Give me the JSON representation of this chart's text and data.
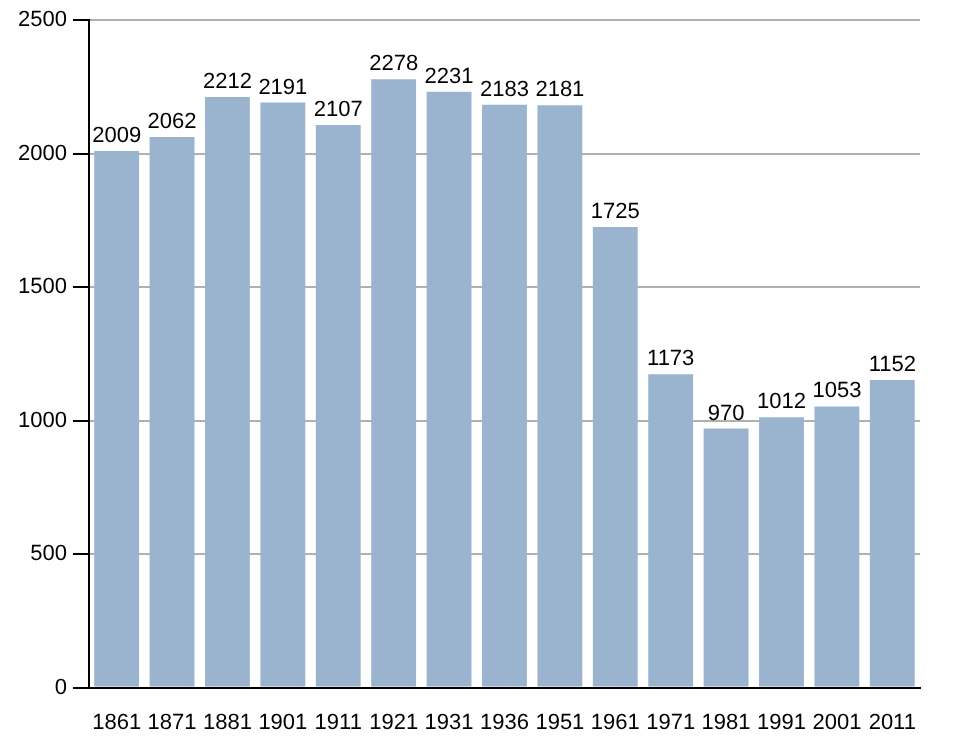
{
  "chart_data": {
    "type": "bar",
    "categories": [
      "1861",
      "1871",
      "1881",
      "1901",
      "1911",
      "1921",
      "1931",
      "1936",
      "1951",
      "1961",
      "1971",
      "1981",
      "1991",
      "2001",
      "2011"
    ],
    "values": [
      2009,
      2062,
      2212,
      2191,
      2107,
      2278,
      2231,
      2183,
      2181,
      1725,
      1173,
      970,
      1012,
      1053,
      1152
    ],
    "color": "#9ab4cf",
    "ylim": [
      0,
      2500
    ],
    "yticks": [
      0,
      500,
      1000,
      1500,
      2000,
      2500
    ],
    "grid": "y",
    "data_labels": true
  }
}
